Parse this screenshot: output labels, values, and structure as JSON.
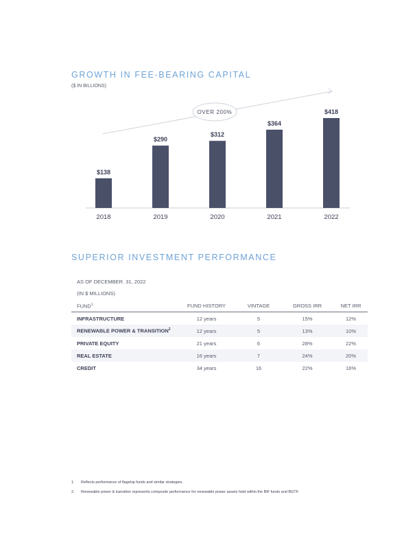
{
  "growth": {
    "title": "GROWTH IN FEE-BEARING CAPITAL",
    "subtitle": "($ IN BILLIONS)",
    "annotation": "OVER 200%"
  },
  "chart_data": {
    "type": "bar",
    "title": "GROWTH IN FEE-BEARING CAPITAL",
    "ylabel": "($ IN BILLIONS)",
    "categories": [
      "2018",
      "2019",
      "2020",
      "2021",
      "2022"
    ],
    "values": [
      138,
      290,
      312,
      364,
      418
    ],
    "value_labels": [
      "$138",
      "$290",
      "$312",
      "$364",
      "$418"
    ],
    "annotation": "OVER 200%",
    "ylim": [
      0,
      418
    ],
    "colors": {
      "bar": "#4a5068",
      "axis": "#cccccc",
      "annotation_line": "#d0d4dc"
    }
  },
  "performance": {
    "title": "SUPERIOR INVESTMENT PERFORMANCE",
    "as_of": "AS OF DECEMBER. 31, 2022",
    "units": "(IN $ MILLIONS)",
    "columns": {
      "fund": "FUND",
      "fund_sup": "1",
      "history": "FUND HISTORY",
      "vintage": "VINTAGE",
      "gross_irr": "GROSS IRR",
      "net_irr": "NET IRR"
    },
    "rows": [
      {
        "fund": "INFRASTRUCTURE",
        "sup": "",
        "history": "12 years",
        "vintage": "5",
        "gross_irr": "15%",
        "net_irr": "12%"
      },
      {
        "fund": "RENEWABLE POWER & TRANSITION",
        "sup": "2",
        "history": "12 years",
        "vintage": "5",
        "gross_irr": "13%",
        "net_irr": "10%"
      },
      {
        "fund": "PRIVATE EQUITY",
        "sup": "",
        "history": "21 years",
        "vintage": "6",
        "gross_irr": "28%",
        "net_irr": "22%"
      },
      {
        "fund": "REAL ESTATE",
        "sup": "",
        "history": "16 years",
        "vintage": "7",
        "gross_irr": "24%",
        "net_irr": "20%"
      },
      {
        "fund": "CREDIT",
        "sup": "",
        "history": "34 years",
        "vintage": "16",
        "gross_irr": "22%",
        "net_irr": "16%"
      }
    ]
  },
  "footnotes": [
    {
      "num": "1.",
      "text": "Reflects performance of flagship funds and similar strategies."
    },
    {
      "num": "2.",
      "text": "Renewable power & transition represents composite performance for renewable power assets held within the BIF funds and BGTF."
    }
  ]
}
